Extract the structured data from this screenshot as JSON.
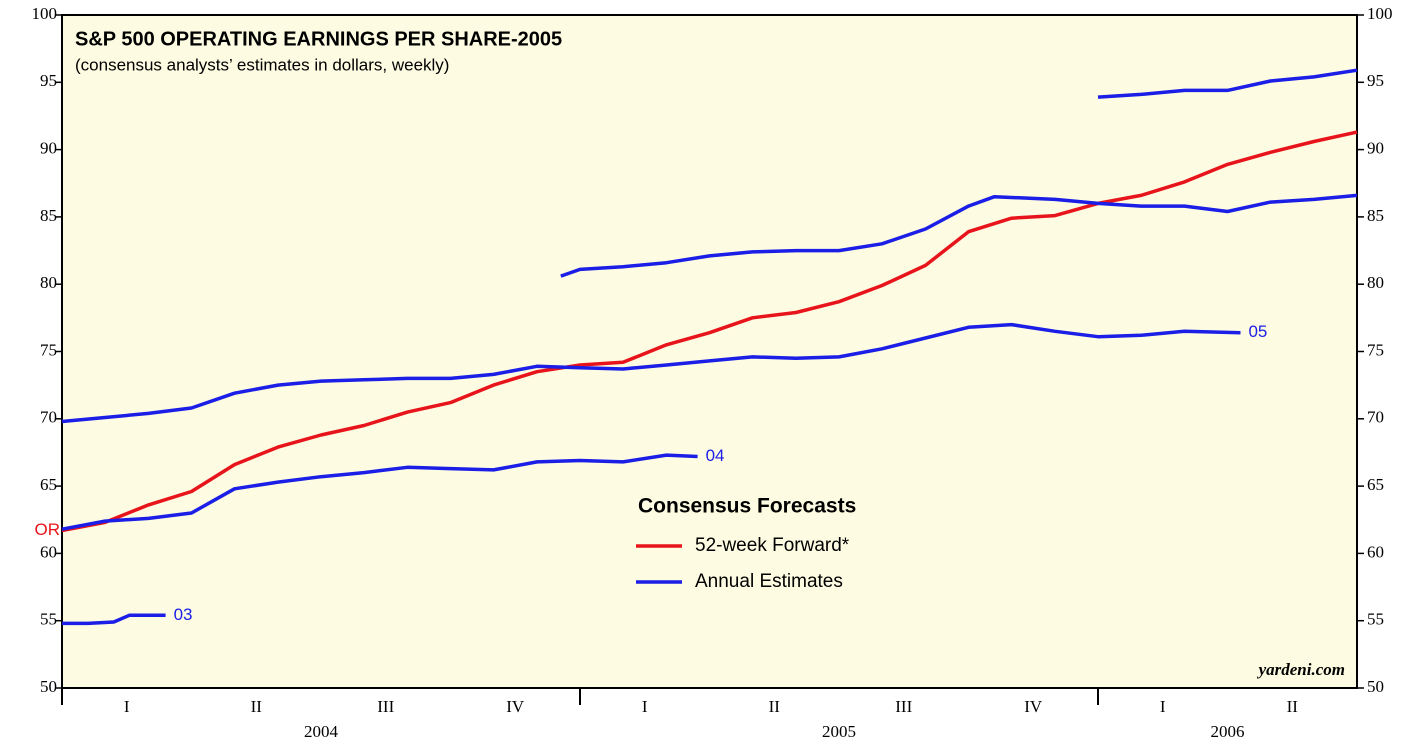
{
  "chart_data": {
    "type": "line",
    "title": "S&P 500 OPERATING EARNINGS PER SHARE-2005",
    "subtitle": "(consensus analysts’ estimates in dollars, weekly)",
    "legend_title": "Consensus Forecasts",
    "legend": [
      {
        "name": "52-week Forward*",
        "color": "#e8141b"
      },
      {
        "name": "Annual Estimates",
        "color": "#1a1ee6"
      }
    ],
    "source": "yardeni.com",
    "xlim": [
      2004,
      2006.5
    ],
    "ylim": [
      50,
      100
    ],
    "yticks": [
      50,
      55,
      60,
      65,
      70,
      75,
      80,
      85,
      90,
      95,
      100
    ],
    "y2lim": [
      50,
      100
    ],
    "y2ticks": [
      50,
      55,
      60,
      65,
      70,
      75,
      80,
      85,
      90,
      95,
      100
    ],
    "x_boundaries": [
      2004,
      2005,
      2006
    ],
    "xticks": [
      {
        "value": 2004.125,
        "label": "I"
      },
      {
        "value": 2004.375,
        "label": "II"
      },
      {
        "value": 2004.625,
        "label": "III"
      },
      {
        "value": 2004.875,
        "label": "IV"
      },
      {
        "value": 2005.125,
        "label": "I"
      },
      {
        "value": 2005.375,
        "label": "II"
      },
      {
        "value": 2005.625,
        "label": "III"
      },
      {
        "value": 2005.875,
        "label": "IV"
      },
      {
        "value": 2006.125,
        "label": "I"
      },
      {
        "value": 2006.375,
        "label": "II"
      }
    ],
    "year_labels": [
      {
        "value": 2004.5,
        "label": "2004"
      },
      {
        "value": 2005.5,
        "label": "2005"
      },
      {
        "value": 2006.25,
        "label": "2006"
      }
    ],
    "series": [
      {
        "color": "#e8141b",
        "start_label": "OR",
        "x": [
          2004,
          2004.083,
          2004.167,
          2004.25,
          2004.333,
          2004.417,
          2004.5,
          2004.583,
          2004.667,
          2004.75,
          2004.833,
          2004.917,
          2005,
          2005.083,
          2005.167,
          2005.25,
          2005.333,
          2005.417,
          2005.5,
          2005.583,
          2005.667,
          2005.75,
          2005.833,
          2005.917,
          2006,
          2006.083,
          2006.167,
          2006.25,
          2006.333,
          2006.417,
          2006.5
        ],
        "values": [
          61.7,
          62.3,
          63.6,
          64.6,
          66.6,
          67.9,
          68.8,
          69.5,
          70.5,
          71.2,
          72.5,
          73.5,
          74.0,
          74.2,
          75.5,
          76.4,
          77.5,
          77.9,
          78.7,
          79.9,
          81.4,
          83.9,
          84.9,
          85.1,
          86.0,
          86.6,
          87.6,
          88.9,
          89.8,
          90.6,
          91.3
        ]
      },
      {
        "color": "#1a1ee6",
        "label": "03",
        "x": [
          2004,
          2004.05,
          2004.1,
          2004.13,
          2004.2
        ],
        "values": [
          54.8,
          54.8,
          54.9,
          55.4,
          55.4
        ]
      },
      {
        "color": "#1a1ee6",
        "label": "04",
        "x": [
          2004,
          2004.083,
          2004.167,
          2004.25,
          2004.333,
          2004.417,
          2004.5,
          2004.583,
          2004.667,
          2004.75,
          2004.833,
          2004.917,
          2005,
          2005.083,
          2005.167,
          2005.227
        ],
        "values": [
          61.8,
          62.4,
          62.6,
          63.0,
          64.8,
          65.3,
          65.7,
          66.0,
          66.4,
          66.3,
          66.2,
          66.8,
          66.9,
          66.8,
          67.3,
          67.2
        ]
      },
      {
        "color": "#1a1ee6",
        "label": "05",
        "x": [
          2004,
          2004.083,
          2004.167,
          2004.25,
          2004.333,
          2004.417,
          2004.5,
          2004.583,
          2004.667,
          2004.75,
          2004.833,
          2004.917,
          2005,
          2005.083,
          2005.167,
          2005.25,
          2005.333,
          2005.417,
          2005.5,
          2005.583,
          2005.667,
          2005.75,
          2005.833,
          2005.917,
          2006,
          2006.083,
          2006.167,
          2006.275
        ],
        "values": [
          69.8,
          70.1,
          70.4,
          70.8,
          71.9,
          72.5,
          72.8,
          72.9,
          73.0,
          73.0,
          73.3,
          73.9,
          73.8,
          73.7,
          74.0,
          74.3,
          74.6,
          74.5,
          74.6,
          75.2,
          76.0,
          76.8,
          77.0,
          76.5,
          76.1,
          76.2,
          76.5,
          76.4
        ]
      },
      {
        "color": "#1a1ee6",
        "x": [
          2004.963,
          2005,
          2005.083,
          2005.167,
          2005.25,
          2005.333,
          2005.417,
          2005.5,
          2005.583,
          2005.667,
          2005.75,
          2005.8,
          2005.917,
          2006,
          2006.083,
          2006.167,
          2006.25,
          2006.333,
          2006.417,
          2006.5
        ],
        "values": [
          80.6,
          81.1,
          81.3,
          81.6,
          82.1,
          82.4,
          82.5,
          82.5,
          83.0,
          84.1,
          85.8,
          86.5,
          86.3,
          86.0,
          85.8,
          85.8,
          85.4,
          86.1,
          86.3,
          86.6
        ]
      },
      {
        "color": "#1a1ee6",
        "x": [
          2006,
          2006.083,
          2006.167,
          2006.25,
          2006.333,
          2006.417,
          2006.5
        ],
        "values": [
          93.9,
          94.1,
          94.4,
          94.4,
          95.1,
          95.4,
          95.9
        ]
      }
    ]
  }
}
